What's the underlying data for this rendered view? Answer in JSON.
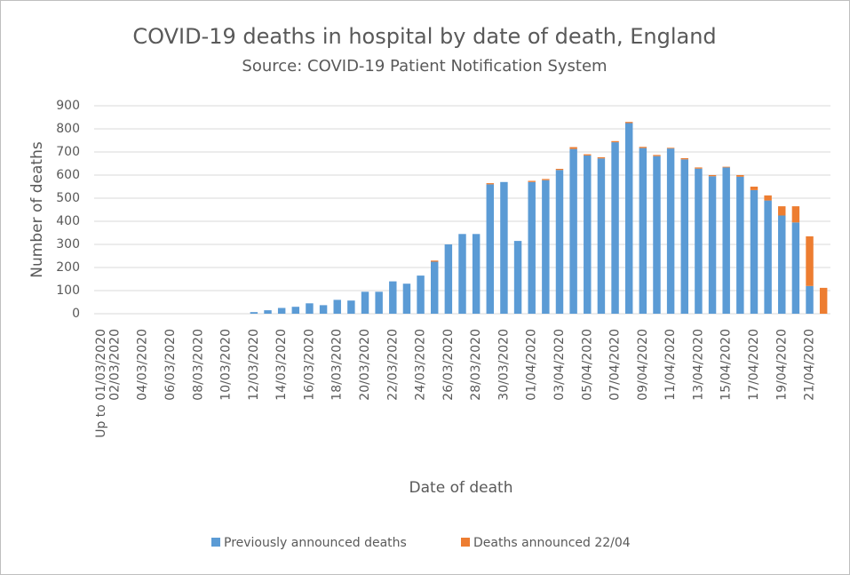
{
  "chart_data": {
    "type": "stacked_bar",
    "title": "COVID-19 deaths in hospital by date of death, England",
    "subtitle": "Source: COVID-19 Patient Notification System",
    "x_label": "Date of death",
    "y_label": "Number of deaths",
    "categories": [
      "Up to 01/03/2020",
      "02/03/2020",
      null,
      "04/03/2020",
      null,
      "06/03/2020",
      null,
      "08/03/2020",
      null,
      "10/03/2020",
      null,
      "12/03/2020",
      null,
      "14/03/2020",
      null,
      "16/03/2020",
      null,
      "18/03/2020",
      null,
      "20/03/2020",
      null,
      "22/03/2020",
      null,
      "24/03/2020",
      null,
      "26/03/2020",
      null,
      "28/03/2020",
      null,
      "30/03/2020",
      null,
      "01/04/2020",
      null,
      "03/04/2020",
      null,
      "05/04/2020",
      null,
      "07/04/2020",
      null,
      "09/04/2020",
      null,
      "11/04/2020",
      null,
      "13/04/2020",
      null,
      "15/04/2020",
      null,
      "17/04/2020",
      null,
      "19/04/2020",
      null,
      "21/04/2020",
      null
    ],
    "series": [
      {
        "name": "Previously announced deaths",
        "color": "#5b9bd5",
        "values": [
          0,
          0,
          0,
          0,
          0,
          0,
          0,
          0,
          0,
          0,
          0,
          7,
          15,
          25,
          30,
          45,
          37,
          60,
          57,
          95,
          95,
          140,
          130,
          165,
          225,
          300,
          345,
          345,
          560,
          570,
          315,
          570,
          578,
          622,
          713,
          685,
          672,
          742,
          825,
          717,
          682,
          715,
          668,
          628,
          595,
          633,
          593,
          535,
          490,
          425,
          395,
          120,
          0
        ]
      },
      {
        "name": "Deaths announced 22/04",
        "color": "#ed7d31",
        "values": [
          0,
          0,
          0,
          0,
          0,
          0,
          0,
          0,
          0,
          0,
          0,
          0,
          0,
          0,
          0,
          0,
          0,
          0,
          0,
          0,
          0,
          0,
          0,
          0,
          5,
          0,
          0,
          0,
          5,
          0,
          0,
          5,
          5,
          5,
          8,
          5,
          5,
          5,
          5,
          5,
          5,
          3,
          5,
          5,
          5,
          3,
          7,
          15,
          22,
          40,
          70,
          215,
          112
        ]
      }
    ],
    "ylim": [
      0,
      900
    ],
    "yticks": [
      0,
      100,
      200,
      300,
      400,
      500,
      600,
      700,
      800,
      900
    ],
    "grid": true,
    "legend": "bottom"
  }
}
